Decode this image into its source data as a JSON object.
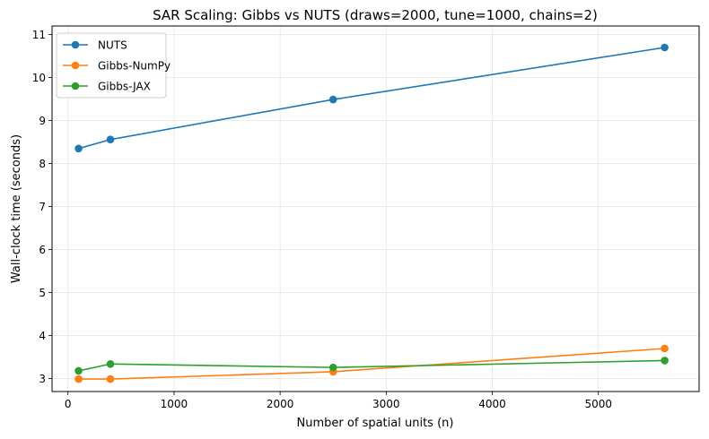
{
  "chart_data": {
    "type": "line",
    "title": "SAR Scaling: Gibbs vs NUTS (draws=2000, tune=1000, chains=2)",
    "xlabel": "Number of spatial units (n)",
    "ylabel": "Wall-clock time (seconds)",
    "xlim": [
      -150,
      5950
    ],
    "ylim": [
      2.7,
      11.2
    ],
    "x_ticks": [
      0,
      1000,
      2000,
      3000,
      4000,
      5000
    ],
    "y_ticks": [
      3,
      4,
      5,
      6,
      7,
      8,
      9,
      10,
      11
    ],
    "grid": true,
    "legend_position": "top-left",
    "x": [
      100,
      400,
      2500,
      5625
    ],
    "series": [
      {
        "name": "NUTS",
        "color": "#1f77b4",
        "values": [
          8.35,
          8.56,
          9.49,
          10.7
        ]
      },
      {
        "name": "Gibbs-NumPy",
        "color": "#ff7f0e",
        "values": [
          2.99,
          2.99,
          3.16,
          3.7
        ]
      },
      {
        "name": "Gibbs-JAX",
        "color": "#2ca02c",
        "values": [
          3.18,
          3.34,
          3.26,
          3.42
        ]
      }
    ]
  }
}
